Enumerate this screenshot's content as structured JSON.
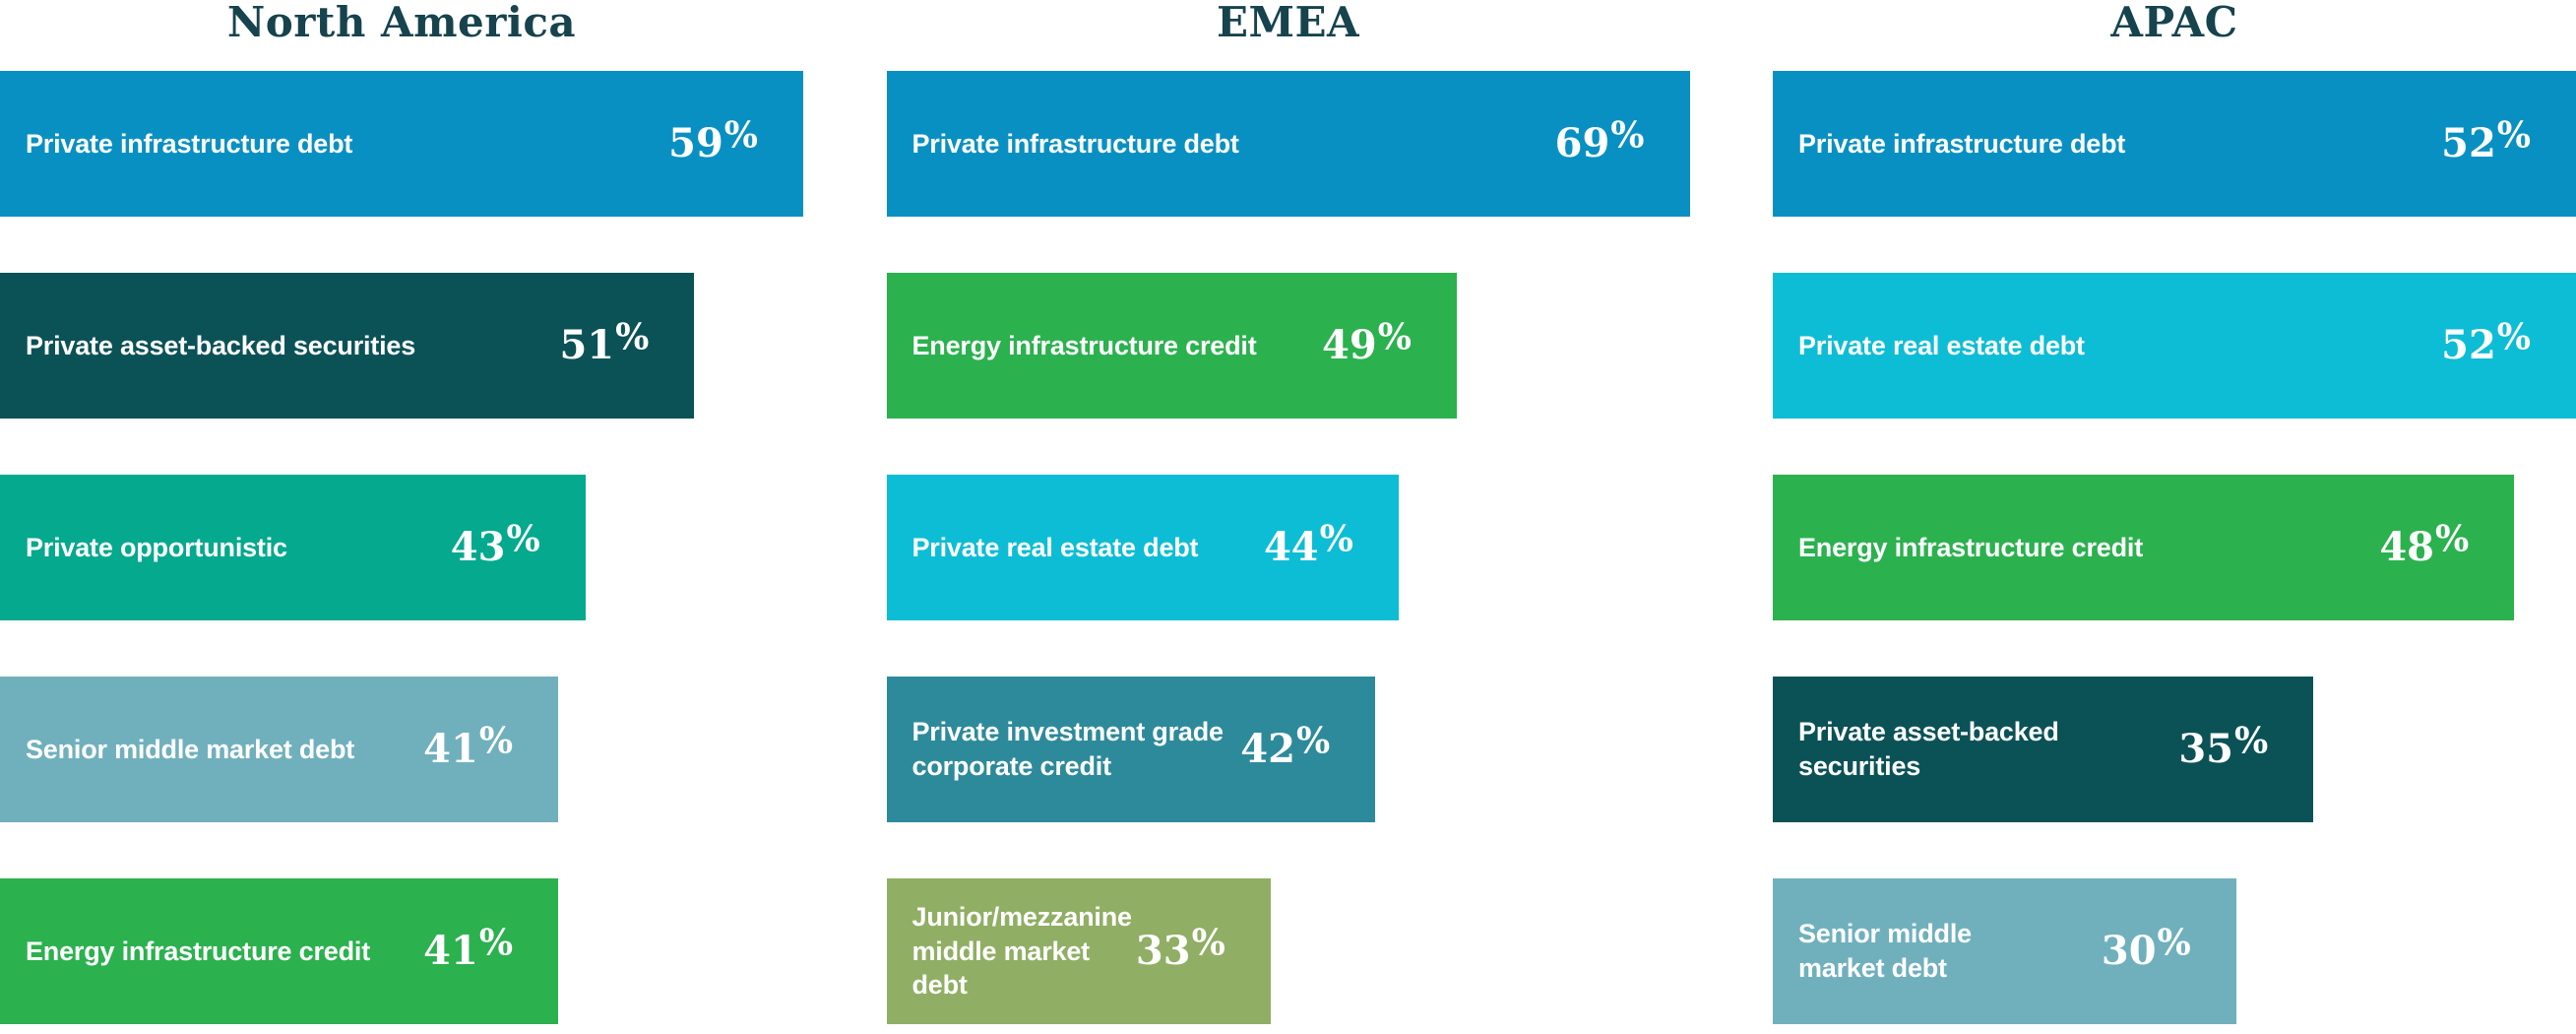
{
  "chart_data": {
    "type": "bar",
    "orientation": "horizontal",
    "value_suffix": "%",
    "legend_position": "none",
    "grid": false,
    "axis": "none (values labeled inside bars, each column scaled to its max value)",
    "title_color": "#16434d",
    "bar_text_color": "#ffffff",
    "groups": [
      {
        "title": "North America",
        "bars": [
          {
            "label": "Private infrastructure debt",
            "value": 59,
            "color": "#0990c3"
          },
          {
            "label": "Private asset-backed securities",
            "value": 51,
            "color": "#0b5257"
          },
          {
            "label": "Private opportunistic",
            "value": 43,
            "color": "#04a98e"
          },
          {
            "label": "Senior middle market debt",
            "value": 41,
            "color": "#70b0bd"
          },
          {
            "label": "Energy infrastructure credit",
            "value": 41,
            "color": "#2bb14e"
          }
        ]
      },
      {
        "title": "EMEA",
        "bars": [
          {
            "label": "Private infrastructure debt",
            "value": 69,
            "color": "#0990c3"
          },
          {
            "label": "Energy infrastructure credit",
            "value": 49,
            "color": "#2bb14e"
          },
          {
            "label": "Private real estate debt",
            "value": 44,
            "color": "#0dbdd5"
          },
          {
            "label": "Private investment grade\ncorporate credit",
            "value": 42,
            "color": "#2d8a9b"
          },
          {
            "label": "Junior/mezzanine\nmiddle market\ndebt",
            "value": 33,
            "color": "#90ae64"
          }
        ]
      },
      {
        "title": "APAC",
        "bars": [
          {
            "label": "Private infrastructure debt",
            "value": 52,
            "color": "#0990c3"
          },
          {
            "label": "Private real estate debt",
            "value": 52,
            "color": "#0dbdd5"
          },
          {
            "label": "Energy infrastructure credit",
            "value": 48,
            "color": "#2bb14e"
          },
          {
            "label": "Private asset-backed\nsecurities",
            "value": 35,
            "color": "#0b5257"
          },
          {
            "label": "Senior middle\nmarket debt",
            "value": 30,
            "color": "#70b0bd"
          }
        ]
      }
    ]
  }
}
